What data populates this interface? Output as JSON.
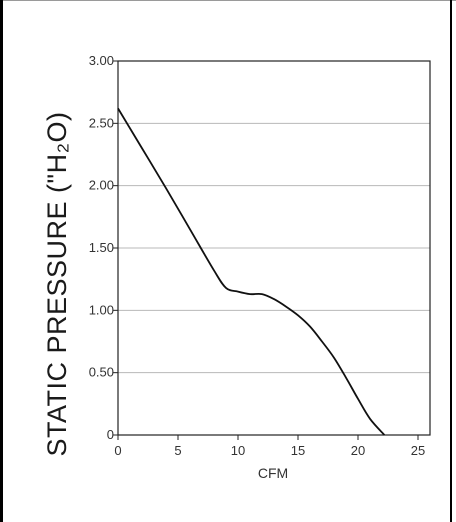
{
  "chart_data": {
    "type": "line",
    "xlabel": "CFM",
    "ylabel": "STATIC PRESSURE (\"H₂O)",
    "xlim": [
      0,
      26
    ],
    "ylim": [
      0,
      3.0
    ],
    "x_ticks": [
      0,
      5,
      10,
      15,
      20,
      25
    ],
    "x_tick_labels": [
      "0",
      "5",
      "10",
      "15",
      "20",
      "25"
    ],
    "y_ticks": [
      0,
      0.5,
      1.0,
      1.5,
      2.0,
      2.5,
      3.0
    ],
    "y_tick_labels": [
      "0",
      "0.50",
      "1.00",
      "1.50",
      "2.00",
      "2.50",
      "3.00"
    ],
    "grid": "horizontal",
    "series": [
      {
        "x": [
          0,
          2,
          4,
          6,
          8,
          9,
          10,
          11,
          12,
          13,
          14,
          15,
          16,
          17,
          18,
          19,
          20,
          21,
          22.2
        ],
        "y": [
          2.62,
          2.3,
          1.98,
          1.65,
          1.32,
          1.18,
          1.15,
          1.13,
          1.13,
          1.09,
          1.03,
          0.96,
          0.87,
          0.75,
          0.62,
          0.46,
          0.29,
          0.13,
          0.0
        ]
      }
    ]
  }
}
